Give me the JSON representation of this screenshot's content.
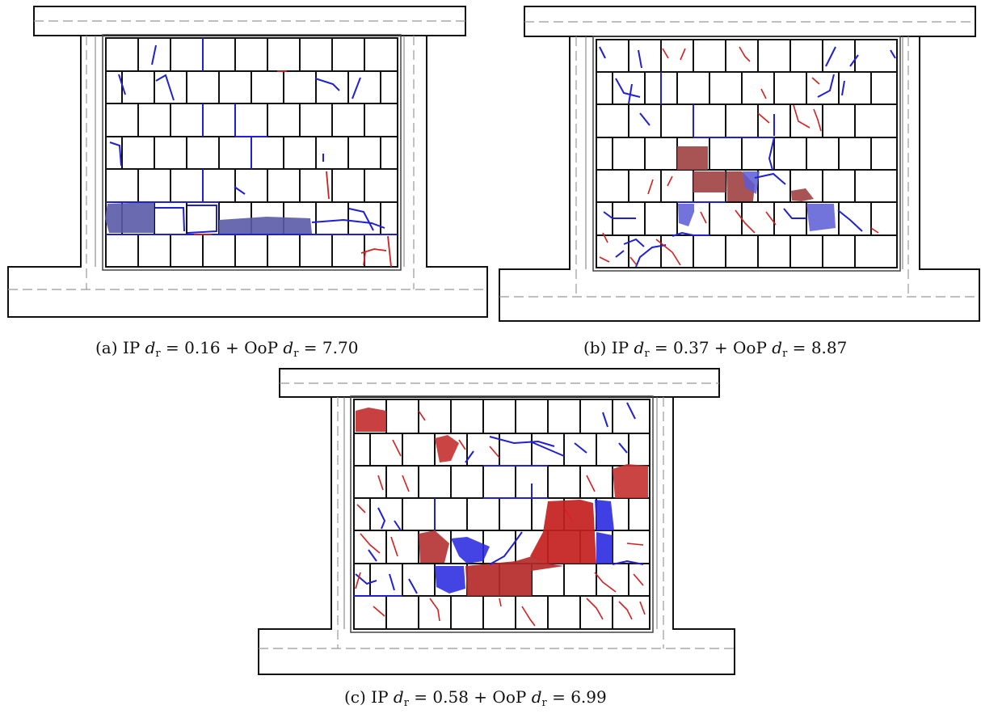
{
  "figure": {
    "panels": [
      {
        "id": "a",
        "caption": {
          "tag": "(a)",
          "ip_label": "IP",
          "ip_value": "0.16",
          "oop_label": "OoP",
          "oop_value": "7.70"
        },
        "crack_colors": {
          "in_plane": "#1f1fd6",
          "out_of_plane": "#d42020"
        },
        "blue_patches": 4,
        "red_patches": 0
      },
      {
        "id": "b",
        "caption": {
          "tag": "(b)",
          "ip_label": "IP",
          "ip_value": "0.37",
          "oop_label": "OoP",
          "oop_value": "8.87"
        },
        "crack_colors": {
          "in_plane": "#1f1fd6",
          "out_of_plane": "#d42020"
        },
        "blue_patches": 3,
        "red_patches": 4
      },
      {
        "id": "c",
        "caption": {
          "tag": "(c)",
          "ip_label": "IP",
          "ip_value": "0.58",
          "oop_label": "OoP",
          "oop_value": "6.99"
        },
        "crack_colors": {
          "in_plane": "#1f1fd6",
          "out_of_plane": "#d42020"
        },
        "blue_patches": 4,
        "red_patches": 6
      }
    ],
    "symbol": {
      "d": "d",
      "subscript": "r"
    }
  }
}
